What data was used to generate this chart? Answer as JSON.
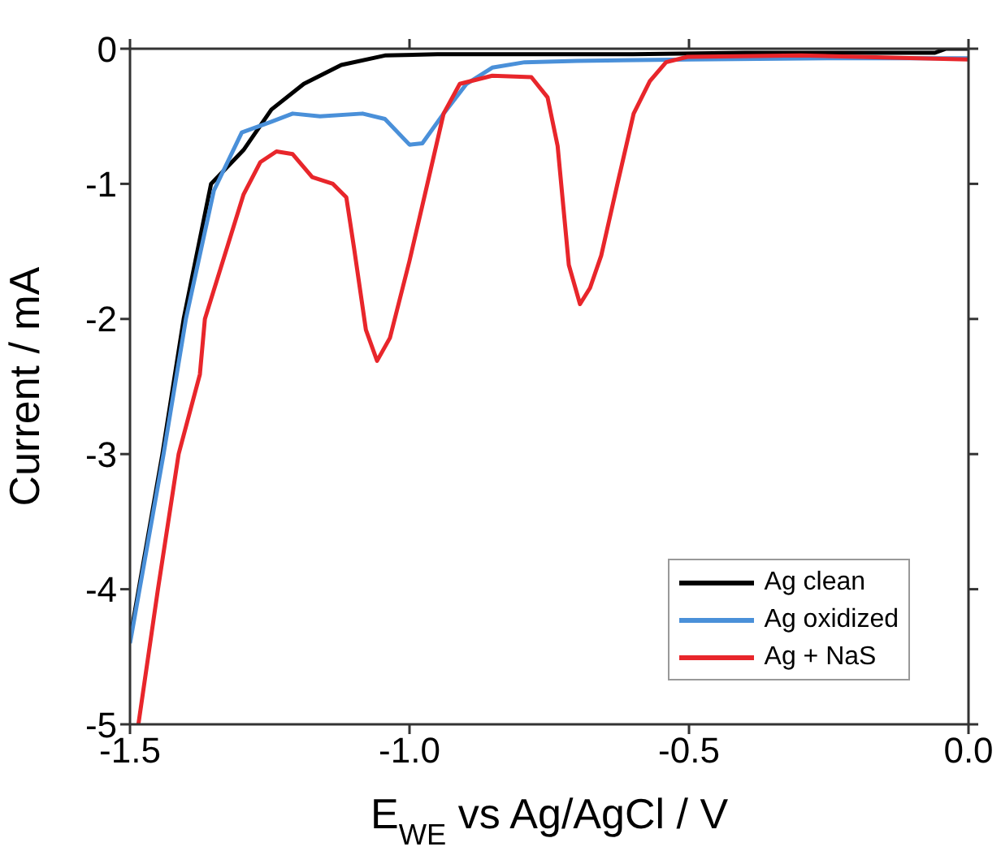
{
  "chart_data": {
    "type": "line",
    "xlabel": "E$_{WE}$ vs Ag/AgCl / V",
    "ylabel": "Current / mA",
    "xlim": [
      -1.5,
      0.0
    ],
    "xticks": [
      -1.5,
      {
        "value": -1.0,
        "label": "-1.0"
      },
      -0.5,
      {
        "value": 0.0,
        "label": "0.0"
      }
    ],
    "ylim": [
      -5,
      0
    ],
    "yticks": [
      -5,
      -4,
      -3,
      -2,
      -1,
      0
    ],
    "legend": "bottom right",
    "line_style": "solid",
    "marker": "none",
    "series": [
      {
        "name": "Ag clean",
        "color": "#000000",
        "x": [
          -1.5,
          -1.442,
          -1.404,
          -1.355,
          -1.297,
          -1.247,
          -1.189,
          -1.122,
          -1.044,
          -0.95,
          -0.8,
          -0.6,
          -0.4,
          -0.2,
          -0.06,
          -0.04,
          0.0
        ],
        "values": [
          -4.37,
          -3.0,
          -2.0,
          -1.0,
          -0.75,
          -0.45,
          -0.26,
          -0.12,
          -0.05,
          -0.04,
          -0.04,
          -0.04,
          -0.03,
          -0.03,
          -0.03,
          0.0,
          0.0
        ]
      },
      {
        "name": "Ag oxidized",
        "color": "#4a90d9",
        "x": [
          -1.5,
          -1.44,
          -1.4,
          -1.35,
          -1.3,
          -1.247,
          -1.209,
          -1.16,
          -1.084,
          -1.044,
          -1.0,
          -0.977,
          -0.939,
          -0.898,
          -0.852,
          -0.794,
          -0.7,
          -0.5,
          -0.25,
          0.0
        ],
        "values": [
          -4.4,
          -3.0,
          -2.0,
          -1.05,
          -0.62,
          -0.54,
          -0.48,
          -0.5,
          -0.48,
          -0.52,
          -0.71,
          -0.7,
          -0.48,
          -0.26,
          -0.14,
          -0.1,
          -0.09,
          -0.08,
          -0.07,
          -0.07
        ]
      },
      {
        "name": "Ag + NaS",
        "color": "#e8262b",
        "x": [
          -1.485,
          -1.45,
          -1.413,
          -1.375,
          -1.366,
          -1.297,
          -1.267,
          -1.238,
          -1.209,
          -1.174,
          -1.137,
          -1.113,
          -1.099,
          -1.078,
          -1.058,
          -1.035,
          -1.0,
          -0.968,
          -0.939,
          -0.91,
          -0.852,
          -0.782,
          -0.753,
          -0.735,
          -0.715,
          -0.695,
          -0.677,
          -0.657,
          -0.628,
          -0.599,
          -0.57,
          -0.541,
          -0.503,
          -0.3,
          0.0
        ],
        "values": [
          -5.0,
          -4.0,
          -3.0,
          -2.41,
          -2.0,
          -1.08,
          -0.84,
          -0.76,
          -0.78,
          -0.95,
          -1.0,
          -1.1,
          -1.48,
          -2.08,
          -2.31,
          -2.14,
          -1.57,
          -1.0,
          -0.48,
          -0.26,
          -0.2,
          -0.21,
          -0.36,
          -0.72,
          -1.6,
          -1.89,
          -1.77,
          -1.53,
          -1.0,
          -0.48,
          -0.24,
          -0.1,
          -0.06,
          -0.05,
          -0.08
        ]
      }
    ]
  }
}
